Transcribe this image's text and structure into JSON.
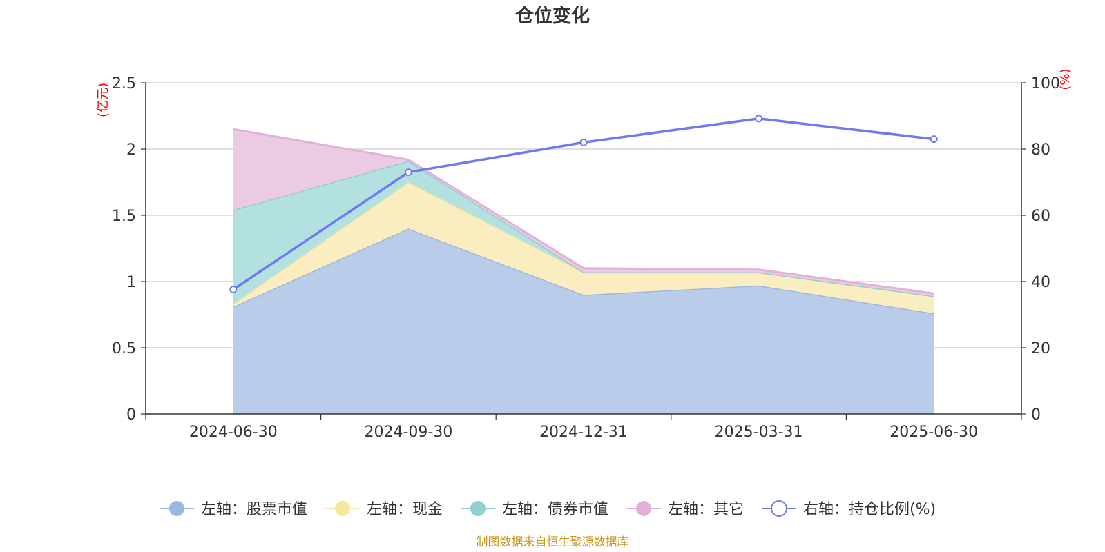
{
  "chart_data": {
    "type": "area",
    "title": "仓位变化",
    "categories": [
      "2024-06-30",
      "2024-09-30",
      "2024-12-31",
      "2025-03-31",
      "2025-06-30"
    ],
    "left_axis": {
      "unit": "(亿元)",
      "ylim": [
        0,
        2.5
      ],
      "ticks": [
        "0",
        "0.5",
        "1",
        "1.5",
        "2",
        "2.5"
      ],
      "tick_values": [
        0,
        0.5,
        1,
        1.5,
        2,
        2.5
      ]
    },
    "right_axis": {
      "unit": "(%)",
      "ylim": [
        0,
        100
      ],
      "ticks": [
        "0",
        "20",
        "40",
        "60",
        "80",
        "100"
      ],
      "tick_values": [
        0,
        20,
        40,
        60,
        80,
        100
      ]
    },
    "series": [
      {
        "name": "左轴：股票市值",
        "axis": "left",
        "kind": "stacked-area",
        "values": [
          0.81,
          1.4,
          0.9,
          0.97,
          0.76
        ],
        "color": "#9db8e0",
        "fill": "#b9cdea"
      },
      {
        "name": "左轴：现金",
        "axis": "left",
        "kind": "stacked-area",
        "values": [
          0.02,
          0.35,
          0.17,
          0.1,
          0.13
        ],
        "color": "#f7e6a0",
        "fill": "#faeec0"
      },
      {
        "name": "左轴：债券市值",
        "axis": "left",
        "kind": "stacked-area",
        "values": [
          0.71,
          0.16,
          0.0,
          0.0,
          0.0
        ],
        "color": "#8fd0d0",
        "fill": "#b3e0e0"
      },
      {
        "name": "左轴：其它",
        "axis": "left",
        "kind": "stacked-area",
        "values": [
          0.61,
          0.01,
          0.03,
          0.02,
          0.02
        ],
        "color": "#e3b0d8",
        "fill": "#edcae3"
      },
      {
        "name": "右轴：持仓比例(%)",
        "axis": "right",
        "kind": "line",
        "values": [
          37.6,
          73.0,
          82.0,
          89.2,
          83.0
        ],
        "color": "#7079f0"
      }
    ],
    "grid": true,
    "legend_position": "bottom",
    "source": "制图数据来自恒生聚源数据库"
  }
}
